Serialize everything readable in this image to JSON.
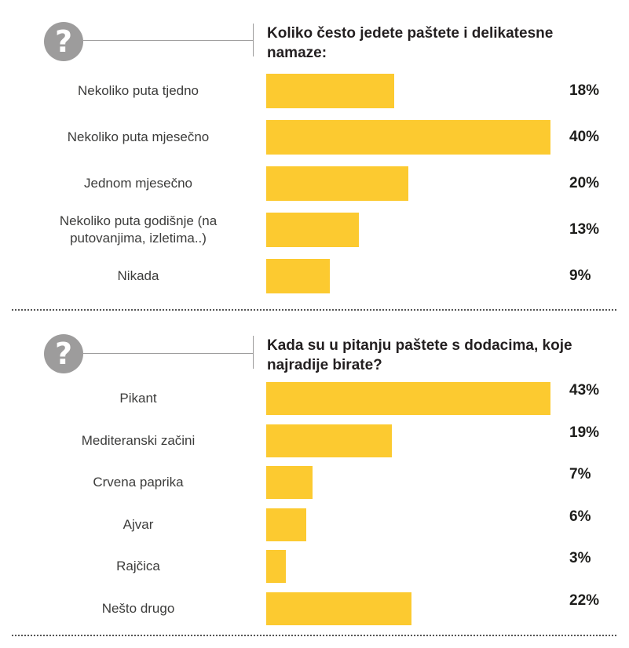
{
  "chart_data": [
    {
      "type": "bar",
      "orientation": "horizontal",
      "title": "Koliko često jedete paštete i delikatesne namaze:",
      "categories": [
        "Nekoliko puta tjedno",
        "Nekoliko puta mjesečno",
        "Jednom mjesečno",
        "Nekoliko puta godišnje (na putovanjima, izletima..)",
        "Nikada"
      ],
      "values": [
        18,
        40,
        20,
        13,
        9
      ],
      "labels": [
        "18%",
        "40%",
        "20%",
        "13%",
        "9%"
      ],
      "unit": "%",
      "bar_color": "#fcca30"
    },
    {
      "type": "bar",
      "orientation": "horizontal",
      "title": "Kada su u pitanju paštete s dodacima, koje najradije birate?",
      "categories": [
        "Pikant",
        "Mediteranski začini",
        "Crvena paprika",
        "Ajvar",
        "Rajčica",
        "Nešto drugo"
      ],
      "values": [
        43,
        19,
        7,
        6,
        3,
        22
      ],
      "labels": [
        "43%",
        "19%",
        "7%",
        "6%",
        "3%",
        "22%"
      ],
      "unit": "%",
      "bar_color": "#fcca30"
    }
  ],
  "icons": {
    "question": "question-mark-icon",
    "question_glyph": "?"
  },
  "colors": {
    "bar": "#fcca30",
    "icon": "#9d9c9c",
    "text": "#231f20"
  }
}
